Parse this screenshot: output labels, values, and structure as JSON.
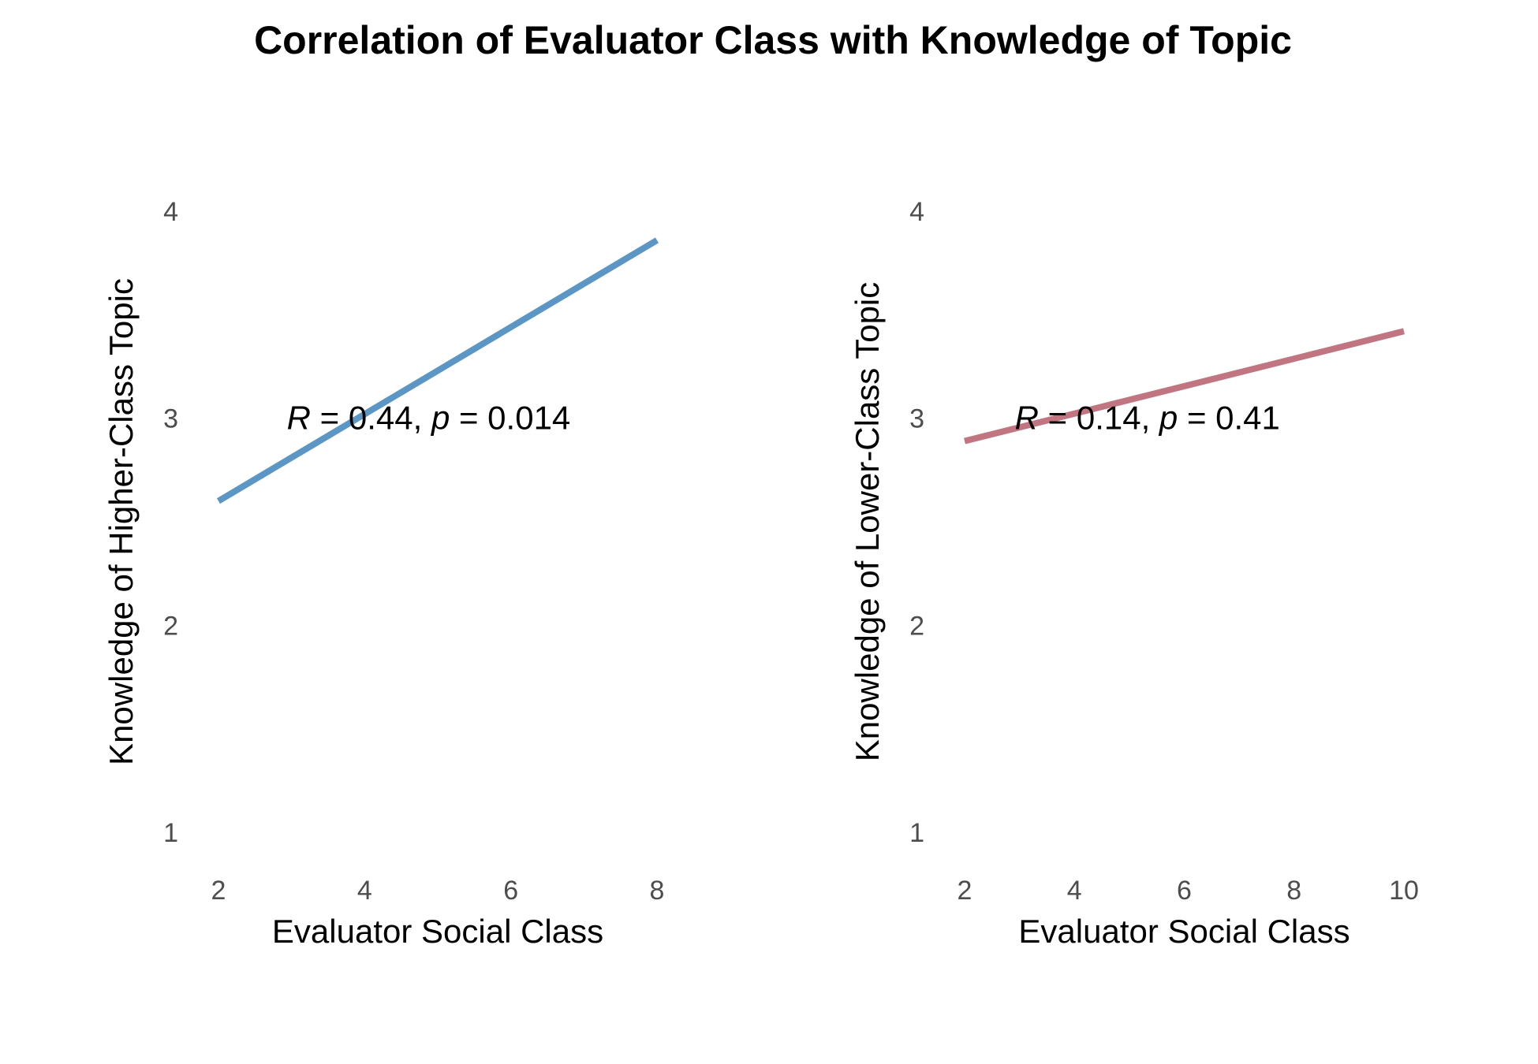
{
  "figure": {
    "title": "Correlation of Evaluator Class with Knowledge of Topic"
  },
  "chart_data": [
    {
      "type": "line",
      "title": "",
      "xlabel": "Evaluator Social Class",
      "ylabel": "Knowledge of Higher-Class Topic",
      "xlim": [
        2,
        8
      ],
      "ylim": [
        1,
        4
      ],
      "x_ticks": [
        2,
        4,
        6,
        8
      ],
      "y_ticks": [
        1,
        2,
        3,
        4
      ],
      "grid": false,
      "series": [
        {
          "color": "#5b96c4",
          "x": [
            2,
            8
          ],
          "y": [
            2.6,
            3.86
          ]
        }
      ],
      "annotation": {
        "r_symbol": "R",
        "r_text": " = 0.44, ",
        "p_symbol": "p",
        "p_text": " = 0.014",
        "x": 3.0,
        "y": 3.0
      }
    },
    {
      "type": "line",
      "title": "",
      "xlabel": "Evaluator Social Class",
      "ylabel": "Knowledge of Lower-Class Topic",
      "xlim": [
        2,
        10
      ],
      "ylim": [
        1,
        4
      ],
      "x_ticks": [
        2,
        4,
        6,
        8,
        10
      ],
      "y_ticks": [
        1,
        2,
        3,
        4
      ],
      "grid": false,
      "series": [
        {
          "color": "#c07581",
          "x": [
            2,
            10
          ],
          "y": [
            2.89,
            3.42
          ]
        }
      ],
      "annotation": {
        "r_symbol": "R",
        "r_text": " = 0.14, ",
        "p_symbol": "p",
        "p_text": " = 0.41",
        "x": 3.0,
        "y": 3.0
      }
    }
  ]
}
